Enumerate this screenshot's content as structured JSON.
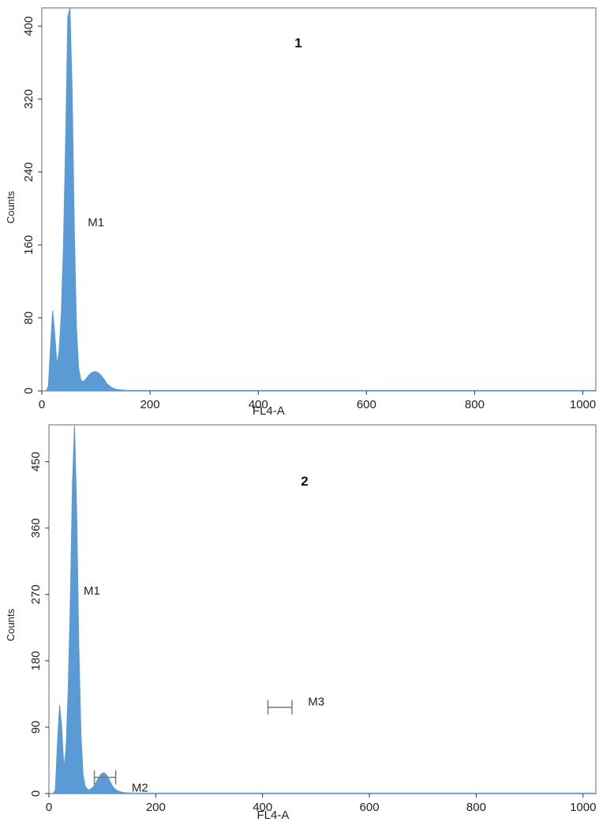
{
  "colors": {
    "fill": "#5b9bd5",
    "frame": "#9a9a9a",
    "marker": "#777777",
    "background": "#ffffff"
  },
  "chart_data": [
    {
      "type": "area",
      "title": "1",
      "xlabel": "FL4-A",
      "ylabel": "Counts",
      "xlim": [
        0,
        1024
      ],
      "ylim": [
        0,
        420
      ],
      "xticks": [
        0,
        200,
        400,
        600,
        800,
        1000
      ],
      "yticks": [
        0,
        80,
        160,
        240,
        320,
        400
      ],
      "grid": false,
      "x": [
        8,
        12,
        16,
        20,
        24,
        28,
        32,
        36,
        40,
        44,
        48,
        52,
        56,
        60,
        64,
        68,
        72,
        76,
        80,
        84,
        88,
        92,
        96,
        100,
        104,
        108,
        112,
        116,
        120,
        124,
        128,
        132,
        136,
        140,
        148,
        156,
        164,
        172,
        180,
        200,
        260,
        320,
        400,
        500,
        600,
        700,
        800,
        900,
        1000
      ],
      "counts": [
        0,
        5,
        48,
        88,
        62,
        28,
        45,
        85,
        160,
        275,
        410,
        420,
        330,
        180,
        70,
        25,
        12,
        10,
        12,
        15,
        18,
        20,
        21,
        21,
        20,
        18,
        15,
        12,
        8,
        6,
        4,
        3,
        2,
        1.5,
        1,
        0.5,
        0,
        0,
        0,
        0,
        0,
        0,
        0,
        0,
        0,
        0,
        0,
        0,
        0
      ],
      "markers": [
        {
          "name": "M1",
          "label": "M1",
          "position": [
            85,
            185
          ]
        }
      ]
    },
    {
      "type": "area",
      "title": "2",
      "xlabel": "FL4-A",
      "ylabel": "Counts",
      "xlim": [
        0,
        1024
      ],
      "ylim": [
        0,
        500
      ],
      "xticks": [
        0,
        200,
        400,
        600,
        800,
        1000
      ],
      "yticks": [
        0,
        90,
        180,
        270,
        360,
        450
      ],
      "grid": false,
      "x": [
        8,
        12,
        16,
        20,
        24,
        28,
        32,
        36,
        40,
        44,
        48,
        52,
        56,
        60,
        64,
        68,
        72,
        76,
        80,
        84,
        88,
        92,
        96,
        100,
        104,
        108,
        112,
        116,
        120,
        124,
        128,
        132,
        136,
        140,
        148,
        160,
        180,
        200,
        240,
        400,
        600,
        800,
        1000
      ],
      "counts": [
        0,
        5,
        70,
        120,
        90,
        35,
        60,
        140,
        260,
        420,
        500,
        380,
        200,
        80,
        25,
        10,
        6,
        5,
        7,
        10,
        15,
        20,
        25,
        28,
        28,
        25,
        20,
        14,
        9,
        6,
        4,
        3,
        2,
        1.5,
        1,
        0.5,
        0,
        0,
        0,
        0,
        0,
        0,
        0
      ],
      "markers": [
        {
          "name": "M1",
          "label": "M1",
          "position": [
            65,
            275
          ]
        },
        {
          "name": "M2",
          "label": "M2",
          "range": [
            85,
            125
          ],
          "level": 22,
          "position": [
            155,
            8
          ]
        },
        {
          "name": "M3",
          "label": "M3",
          "range": [
            410,
            455
          ],
          "level": 117,
          "position": [
            485,
            125
          ]
        }
      ]
    }
  ]
}
